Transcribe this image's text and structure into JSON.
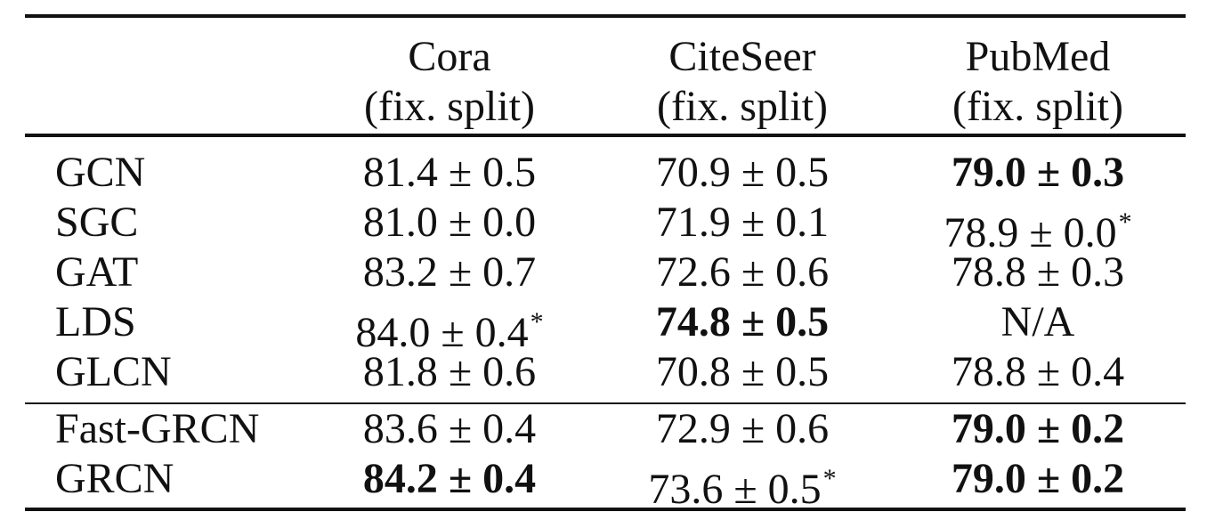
{
  "table": {
    "columns": [
      {
        "name": "Cora",
        "sub": "(fix. split)"
      },
      {
        "name": "CiteSeer",
        "sub": "(fix. split)"
      },
      {
        "name": "PubMed",
        "sub": "(fix. split)"
      }
    ],
    "groups": [
      [
        {
          "method": "GCN",
          "values": [
            {
              "text": "81.4 ± 0.5",
              "bold": false,
              "star": false
            },
            {
              "text": "70.9 ± 0.5",
              "bold": false,
              "star": false
            },
            {
              "text": "79.0 ± 0.3",
              "bold": true,
              "star": false
            }
          ]
        },
        {
          "method": "SGC",
          "values": [
            {
              "text": "81.0 ± 0.0",
              "bold": false,
              "star": false
            },
            {
              "text": "71.9 ± 0.1",
              "bold": false,
              "star": false
            },
            {
              "text": "78.9 ± 0.0",
              "bold": false,
              "star": true
            }
          ]
        },
        {
          "method": "GAT",
          "values": [
            {
              "text": "83.2 ± 0.7",
              "bold": false,
              "star": false
            },
            {
              "text": "72.6 ± 0.6",
              "bold": false,
              "star": false
            },
            {
              "text": "78.8 ± 0.3",
              "bold": false,
              "star": false
            }
          ]
        },
        {
          "method": "LDS",
          "values": [
            {
              "text": "84.0 ± 0.4",
              "bold": false,
              "star": true
            },
            {
              "text": "74.8 ± 0.5",
              "bold": true,
              "star": false
            },
            {
              "text": "N/A",
              "bold": false,
              "star": false
            }
          ]
        },
        {
          "method": "GLCN",
          "values": [
            {
              "text": "81.8 ± 0.6",
              "bold": false,
              "star": false
            },
            {
              "text": "70.8 ± 0.5",
              "bold": false,
              "star": false
            },
            {
              "text": "78.8 ± 0.4",
              "bold": false,
              "star": false
            }
          ]
        }
      ],
      [
        {
          "method": "Fast-GRCN",
          "values": [
            {
              "text": "83.6 ± 0.4",
              "bold": false,
              "star": false
            },
            {
              "text": "72.9 ± 0.6",
              "bold": false,
              "star": false
            },
            {
              "text": "79.0 ± 0.2",
              "bold": true,
              "star": false
            }
          ]
        },
        {
          "method": "GRCN",
          "values": [
            {
              "text": "84.2 ± 0.4",
              "bold": true,
              "star": false
            },
            {
              "text": "73.6 ± 0.5",
              "bold": false,
              "star": true
            },
            {
              "text": "79.0 ± 0.2",
              "bold": true,
              "star": false
            }
          ]
        }
      ]
    ],
    "footnote_marker": "*"
  }
}
